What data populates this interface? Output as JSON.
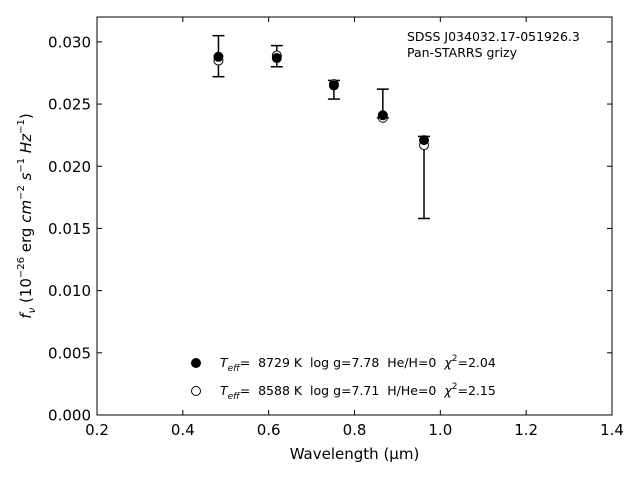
{
  "chart_data": {
    "type": "scatter",
    "title": "",
    "xlabel": "Wavelength (μm)",
    "ylabel_parts": {
      "f": "f",
      "nu": "ν",
      "paren_open": " (10",
      "exp26": "−26",
      "erg": " erg ",
      "cm": "cm",
      "exp_cm": "−2",
      "s": " s",
      "exp_s": "−1",
      "hz": " Hz",
      "exp_hz": "−1",
      "paren_close": ")"
    },
    "xlim": [
      0.2,
      1.4
    ],
    "ylim": [
      0.0,
      0.032
    ],
    "xticks": [
      0.2,
      0.4,
      0.6,
      0.8,
      1.0,
      1.2,
      1.4
    ],
    "xtick_labels": [
      "0.2",
      "0.4",
      "0.6",
      "0.8",
      "1.0",
      "1.2",
      "1.4"
    ],
    "yticks": [
      0.0,
      0.005,
      0.01,
      0.015,
      0.02,
      0.025,
      0.03
    ],
    "ytick_labels": [
      "0.000",
      "0.005",
      "0.010",
      "0.015",
      "0.020",
      "0.025",
      "0.030"
    ],
    "annotations": [
      "SDSS J034032.17-051926.3",
      "Pan-STARRS grizy"
    ],
    "legend_position": "lower-center",
    "observed": {
      "x": [
        0.483,
        0.619,
        0.752,
        0.866,
        0.962
      ],
      "y": [
        0.0288,
        0.0288,
        0.0265,
        0.0239,
        0.0221
      ],
      "yerr_low": [
        0.0272,
        0.028,
        0.0254,
        0.0239,
        0.0158
      ],
      "yerr_high": [
        0.0305,
        0.0297,
        0.0269,
        0.0262,
        0.0224
      ]
    },
    "series": [
      {
        "marker": "filled",
        "legend": {
          "teff_sym": "T",
          "teff_sub": "eff",
          "text": "=  8729 K  log g=7.78  He/H=0  ",
          "chi": "χ",
          "chi_exp": "2",
          "chi_val": "=2.04"
        },
        "x": [
          0.483,
          0.619,
          0.752,
          0.866,
          0.962
        ],
        "y": [
          0.0288,
          0.0287,
          0.0265,
          0.0241,
          0.0221
        ]
      },
      {
        "marker": "open",
        "legend": {
          "teff_sym": "T",
          "teff_sub": "eff",
          "text": "=  8588 K  log g=7.71  H/He=0  ",
          "chi": "χ",
          "chi_exp": "2",
          "chi_val": "=2.15"
        },
        "x": [
          0.483,
          0.619,
          0.752,
          0.866,
          0.962
        ],
        "y": [
          0.0285,
          0.0289,
          0.0266,
          0.0239,
          0.0217
        ]
      }
    ]
  }
}
